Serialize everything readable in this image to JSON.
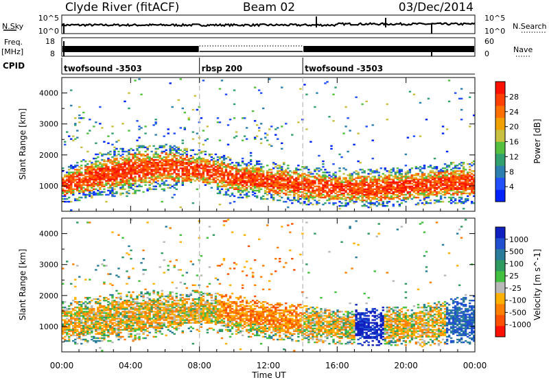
{
  "header": {
    "station": "Clyde River (fitACF)",
    "beam": "Beam 02",
    "date": "03/Dec/2014"
  },
  "noise_panel": {
    "left_label": "N.Sky",
    "right_label": "N.Search",
    "left_ticks": [
      "10^5",
      "10^0"
    ],
    "right_ticks": [
      "10^5",
      "10^0"
    ]
  },
  "freq_panel": {
    "left_label_1": "Freq.",
    "left_label_2": "[MHz]",
    "right_label": "Nave",
    "left_ticks": [
      "18",
      "8"
    ],
    "right_ticks": [
      "60",
      "0"
    ]
  },
  "cpid": {
    "label": "CPID",
    "segments": [
      {
        "name": "twofsound -3503",
        "start_h": 0,
        "end_h": 8
      },
      {
        "name": "rbsp 200",
        "start_h": 8,
        "end_h": 14
      },
      {
        "name": "twofsound -3503",
        "start_h": 14,
        "end_h": 24
      }
    ]
  },
  "x_axis": {
    "label": "Time UT",
    "ticks": [
      "00:00",
      "04:00",
      "08:00",
      "12:00",
      "16:00",
      "20:00",
      "00:00"
    ]
  },
  "chart_data": [
    {
      "type": "heatmap",
      "title": "Power",
      "xlabel": "Time UT",
      "ylabel": "Slant Range [km]",
      "y_ticks": [
        "1000",
        "2000",
        "3000",
        "4000"
      ],
      "xlim": [
        0,
        24
      ],
      "ylim": [
        180,
        4500
      ],
      "colorbar": {
        "label": "Power [dB]",
        "ticks": [
          "4",
          "8",
          "12",
          "16",
          "20",
          "24",
          "28"
        ],
        "colors": [
          "#0022ff",
          "#2050ff",
          "#2d7fb0",
          "#33a070",
          "#55c040",
          "#c8c040",
          "#f0a000",
          "#ff7000",
          "#ff4000",
          "#ff1000"
        ]
      },
      "main_band": [
        {
          "t": 0,
          "center_km": 1000,
          "half_width_km": 350
        },
        {
          "t": 2,
          "center_km": 1300,
          "half_width_km": 450
        },
        {
          "t": 4,
          "center_km": 1500,
          "half_width_km": 500
        },
        {
          "t": 6,
          "center_km": 1600,
          "half_width_km": 450
        },
        {
          "t": 8,
          "center_km": 1500,
          "half_width_km": 400
        },
        {
          "t": 10,
          "center_km": 1250,
          "half_width_km": 400
        },
        {
          "t": 12,
          "center_km": 1150,
          "half_width_km": 380
        },
        {
          "t": 14,
          "center_km": 1000,
          "half_width_km": 400
        },
        {
          "t": 16,
          "center_km": 900,
          "half_width_km": 350
        },
        {
          "t": 18,
          "center_km": 900,
          "half_width_km": 400
        },
        {
          "t": 20,
          "center_km": 950,
          "half_width_km": 400
        },
        {
          "t": 22,
          "center_km": 1050,
          "half_width_km": 400
        },
        {
          "t": 24,
          "center_km": 1100,
          "half_width_km": 450
        }
      ]
    },
    {
      "type": "heatmap",
      "title": "Velocity",
      "xlabel": "Time UT",
      "ylabel": "Slant Range [km]",
      "y_ticks": [
        "1000",
        "2000",
        "3000",
        "4000"
      ],
      "xlim": [
        0,
        24
      ],
      "ylim": [
        180,
        4500
      ],
      "colorbar": {
        "label": "Velocity [m s^-1]",
        "ticks": [
          "1000",
          "500",
          "100",
          "25",
          "-25",
          "-100",
          "-500",
          "-1000"
        ],
        "colors": [
          "#1020c0",
          "#2050d0",
          "#2a7d9a",
          "#2e9a60",
          "#44c040",
          "#b8b8b8",
          "#ffb000",
          "#ff8000",
          "#ff5000",
          "#ff1000"
        ]
      },
      "main_band": [
        {
          "t": 0,
          "center_km": 1100,
          "half_width_km": 450
        },
        {
          "t": 4,
          "center_km": 1300,
          "half_width_km": 500
        },
        {
          "t": 8,
          "center_km": 1500,
          "half_width_km": 400
        },
        {
          "t": 12,
          "center_km": 1200,
          "half_width_km": 400
        },
        {
          "t": 16,
          "center_km": 950,
          "half_width_km": 350
        },
        {
          "t": 20,
          "center_km": 1000,
          "half_width_km": 400
        },
        {
          "t": 24,
          "center_km": 1200,
          "half_width_km": 500
        }
      ]
    }
  ]
}
